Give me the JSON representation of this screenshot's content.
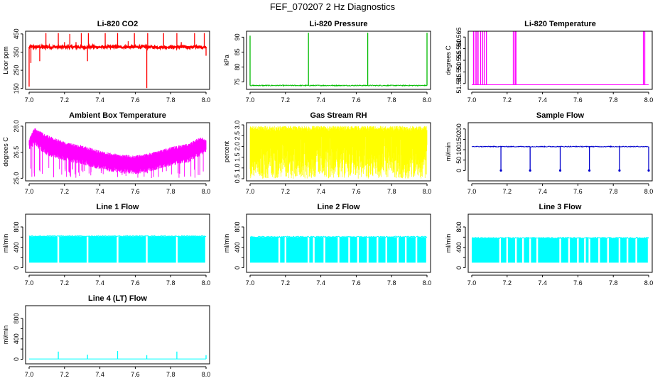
{
  "page_title": "FEF_070207  2 Hz Diagnostics",
  "chart_data": [
    {
      "type": "line",
      "title": "Li-820 CO2",
      "ylabel": "Licor ppm",
      "color": "#ff0000",
      "xlim": [
        6.98,
        8.02
      ],
      "ylim": [
        145,
        465
      ],
      "xticks": [
        7.0,
        7.2,
        7.4,
        7.6,
        7.8,
        8.0
      ],
      "yticks": [
        150,
        250,
        350,
        450
      ],
      "ytick_labels": [
        "150",
        "250",
        "350",
        "450"
      ],
      "series": [
        {
          "name": "CO2",
          "baseline": 378,
          "noise": 7,
          "spikes": [
            {
              "x": 7.0,
              "y": 160
            },
            {
              "x": 7.01,
              "y": 290
            },
            {
              "x": 7.06,
              "y": 300
            },
            {
              "x": 7.095,
              "y": 455
            },
            {
              "x": 7.165,
              "y": 455
            },
            {
              "x": 7.2,
              "y": 405
            },
            {
              "x": 7.23,
              "y": 450
            },
            {
              "x": 7.265,
              "y": 405
            },
            {
              "x": 7.295,
              "y": 455
            },
            {
              "x": 7.33,
              "y": 300
            },
            {
              "x": 7.335,
              "y": 455
            },
            {
              "x": 7.43,
              "y": 455
            },
            {
              "x": 7.5,
              "y": 455
            },
            {
              "x": 7.56,
              "y": 410
            },
            {
              "x": 7.595,
              "y": 455
            },
            {
              "x": 7.665,
              "y": 152
            },
            {
              "x": 7.67,
              "y": 455
            },
            {
              "x": 7.76,
              "y": 455
            },
            {
              "x": 7.835,
              "y": 455
            },
            {
              "x": 7.86,
              "y": 405
            },
            {
              "x": 7.935,
              "y": 455
            },
            {
              "x": 7.99,
              "y": 455
            },
            {
              "x": 8.0,
              "y": 330
            }
          ]
        }
      ]
    },
    {
      "type": "line",
      "title": "Li-820 Pressure",
      "ylabel": "kPa",
      "color": "#00bb00",
      "xlim": [
        6.98,
        8.02
      ],
      "ylim": [
        72.5,
        92
      ],
      "xticks": [
        7.0,
        7.2,
        7.4,
        7.6,
        7.8,
        8.0
      ],
      "yticks": [
        75,
        80,
        85,
        90
      ],
      "ytick_labels": [
        "75",
        "80",
        "85",
        "90"
      ],
      "series": [
        {
          "name": "Pressure",
          "baseline": 73.8,
          "noise": 0.15,
          "spikes": [
            {
              "x": 7.0,
              "y": 90.5
            },
            {
              "x": 7.33,
              "y": 91.5
            },
            {
              "x": 7.665,
              "y": 91.5
            },
            {
              "x": 8.0,
              "y": 91.5
            }
          ]
        }
      ]
    },
    {
      "type": "line",
      "title": "Li-820 Temperature",
      "ylabel": "degrees C",
      "color": "#ff00ff",
      "xlim": [
        6.98,
        8.02
      ],
      "ylim": [
        51.5425,
        51.5675
      ],
      "xticks": [
        7.0,
        7.2,
        7.4,
        7.6,
        7.8,
        8.0
      ],
      "yticks": [
        51.545,
        51.55,
        51.555,
        51.56,
        51.565
      ],
      "ytick_labels": [
        "51.545",
        "51.550",
        "51.555",
        "51.560",
        "51.565"
      ],
      "series": [
        {
          "name": "Temperature",
          "baseline": 51.5445,
          "noise": 0,
          "spikes": [
            {
              "x": 7.01,
              "y": 51.5675
            },
            {
              "x": 7.02,
              "y": 51.5675
            },
            {
              "x": 7.028,
              "y": 51.5675
            },
            {
              "x": 7.036,
              "y": 51.5675
            },
            {
              "x": 7.05,
              "y": 51.5675
            },
            {
              "x": 7.062,
              "y": 51.5675
            },
            {
              "x": 7.072,
              "y": 51.5675
            },
            {
              "x": 7.083,
              "y": 51.5675
            },
            {
              "x": 7.235,
              "y": 51.5675
            },
            {
              "x": 7.245,
              "y": 51.5675
            },
            {
              "x": 7.25,
              "y": 51.5675
            },
            {
              "x": 7.97,
              "y": 51.5675
            },
            {
              "x": 7.978,
              "y": 51.5675
            }
          ]
        }
      ]
    },
    {
      "type": "line",
      "title": "Ambient Box Temperature",
      "ylabel": "degrees C",
      "color": "#ff00ff",
      "xlim": [
        6.98,
        8.02
      ],
      "ylim": [
        24.85,
        28.2
      ],
      "xticks": [
        7.0,
        7.2,
        7.4,
        7.6,
        7.8,
        8.0
      ],
      "yticks": [
        25.0,
        26.5,
        28.0
      ],
      "ytick_labels": [
        "25.0",
        "26.5",
        "28.0"
      ],
      "series": [
        {
          "name": "Box temperature",
          "envelope_x": [
            7.0,
            7.03,
            7.1,
            7.2,
            7.3,
            7.4,
            7.5,
            7.6,
            7.7,
            7.8,
            7.9,
            7.97,
            8.0
          ],
          "envelope_top": [
            27.3,
            27.9,
            27.5,
            27.1,
            26.9,
            26.6,
            26.4,
            26.3,
            26.5,
            26.8,
            27.0,
            27.4,
            27.2
          ],
          "envelope_bottom": [
            26.6,
            26.9,
            26.3,
            26.0,
            25.8,
            25.5,
            25.3,
            25.2,
            25.4,
            25.7,
            25.9,
            26.3,
            26.4
          ],
          "dips_to": 25.0
        }
      ]
    },
    {
      "type": "line",
      "title": "Gas Stream RH",
      "ylabel": "percent",
      "color": "#ffff00",
      "xlim": [
        6.98,
        8.02
      ],
      "ylim": [
        0.4,
        3.1
      ],
      "xticks": [
        7.0,
        7.2,
        7.4,
        7.6,
        7.8,
        8.0
      ],
      "yticks": [
        0.5,
        1.0,
        1.5,
        2.0,
        2.5,
        3.0
      ],
      "ytick_labels": [
        "0.5",
        "1.0",
        "1.5",
        "2.0",
        "2.5",
        "3.0"
      ],
      "series": [
        {
          "name": "RH",
          "range": [
            0.5,
            2.95
          ]
        }
      ]
    },
    {
      "type": "line",
      "title": "Sample Flow",
      "ylabel": "ml/min",
      "color": "#0000cc",
      "xlim": [
        6.98,
        8.02
      ],
      "ylim": [
        -50,
        230
      ],
      "xticks": [
        7.0,
        7.2,
        7.4,
        7.6,
        7.8,
        8.0
      ],
      "yticks": [
        0,
        50,
        100,
        150,
        200
      ],
      "ytick_labels": [
        "0",
        "50",
        "100",
        "150",
        "200"
      ],
      "series": [
        {
          "name": "Sample flow",
          "baseline": 115,
          "noise": 2,
          "spikes": [
            {
              "x": 7.165,
              "y": 0
            },
            {
              "x": 7.33,
              "y": 0
            },
            {
              "x": 7.5,
              "y": 0
            },
            {
              "x": 7.665,
              "y": 0
            },
            {
              "x": 7.835,
              "y": 0
            },
            {
              "x": 8.0,
              "y": 0
            }
          ]
        }
      ]
    },
    {
      "type": "area",
      "title": "Line 1 Flow",
      "ylabel": "ml/min",
      "color": "#00ffff",
      "xlim": [
        6.98,
        8.02
      ],
      "ylim": [
        -90,
        1050
      ],
      "xticks": [
        7.0,
        7.2,
        7.4,
        7.6,
        7.8,
        8.0
      ],
      "yticks": [
        0,
        200,
        400,
        600,
        800
      ],
      "ytick_labels": [
        "0",
        "",
        "400",
        "",
        "800"
      ],
      "series": [
        {
          "name": "Line 1 flow",
          "high": 615,
          "low": 100,
          "gaps": [
            7.165,
            7.33,
            7.5,
            7.665,
            7.835,
            8.0
          ]
        }
      ]
    },
    {
      "type": "area",
      "title": "Line 2 Flow",
      "ylabel": "ml/min",
      "color": "#00ffff",
      "xlim": [
        6.98,
        8.02
      ],
      "ylim": [
        -90,
        1050
      ],
      "xticks": [
        7.0,
        7.2,
        7.4,
        7.6,
        7.8,
        8.0
      ],
      "yticks": [
        0,
        200,
        400,
        600,
        800
      ],
      "ytick_labels": [
        "0",
        "",
        "400",
        "",
        "800"
      ],
      "series": [
        {
          "name": "Line 2 flow",
          "high": 600,
          "low": 100,
          "gaps": [
            7.165,
            7.2,
            7.33,
            7.36,
            7.42,
            7.5,
            7.56,
            7.61,
            7.665,
            7.72,
            7.77,
            7.835,
            7.88,
            7.94
          ]
        }
      ]
    },
    {
      "type": "area",
      "title": "Line 3 Flow",
      "ylabel": "ml/min",
      "color": "#00ffff",
      "xlim": [
        6.98,
        8.02
      ],
      "ylim": [
        -90,
        1050
      ],
      "xticks": [
        7.0,
        7.2,
        7.4,
        7.6,
        7.8,
        8.0
      ],
      "yticks": [
        0,
        200,
        400,
        600,
        800
      ],
      "ytick_labels": [
        "0",
        "",
        "400",
        "",
        "800"
      ],
      "series": [
        {
          "name": "Line 3 flow",
          "high": 580,
          "low": 100,
          "gaps": [
            7.16,
            7.2,
            7.25,
            7.29,
            7.33,
            7.37,
            7.5,
            7.55,
            7.6,
            7.64,
            7.665,
            7.72,
            7.77,
            7.835,
            7.88,
            7.93
          ]
        }
      ]
    },
    {
      "type": "line",
      "title": "Line 4 (LT) Flow",
      "ylabel": "ml/min",
      "color": "#00ffff",
      "xlim": [
        6.98,
        8.02
      ],
      "ylim": [
        -90,
        1050
      ],
      "xticks": [
        7.0,
        7.2,
        7.4,
        7.6,
        7.8,
        8.0
      ],
      "yticks": [
        0,
        200,
        400,
        600,
        800
      ],
      "ytick_labels": [
        "0",
        "",
        "400",
        "",
        "800"
      ],
      "series": [
        {
          "name": "Line 4 flow",
          "baseline": 5,
          "noise": 0,
          "spikes": [
            {
              "x": 7.165,
              "y": 150
            },
            {
              "x": 7.33,
              "y": 90
            },
            {
              "x": 7.5,
              "y": 160
            },
            {
              "x": 7.665,
              "y": 80
            },
            {
              "x": 7.835,
              "y": 150
            },
            {
              "x": 8.0,
              "y": 80
            }
          ]
        }
      ]
    }
  ]
}
